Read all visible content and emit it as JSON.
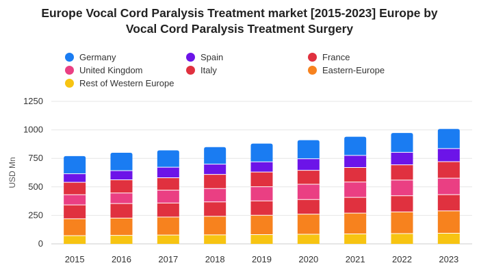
{
  "title_line1": "Europe Vocal Cord Paralysis Treatment market [2015-2023] Europe by",
  "title_line2": "Vocal Cord Paralysis Treatment Surgery",
  "chart_data": {
    "type": "bar",
    "stacked": true,
    "title": "Europe Vocal Cord Paralysis Treatment market [2015-2023] Europe by Vocal Cord Paralysis Treatment Surgery",
    "xlabel": "",
    "ylabel": "USD Mn",
    "ylim": [
      0,
      1250
    ],
    "yticks": [
      0,
      250,
      500,
      750,
      1000,
      1250
    ],
    "grid": true,
    "legend_position": "top",
    "categories": [
      "2015",
      "2016",
      "2017",
      "2018",
      "2019",
      "2020",
      "2021",
      "2022",
      "2023"
    ],
    "series": [
      {
        "name": "Rest of Western Europe",
        "color": "#f7c412",
        "values": [
          72,
          74,
          77,
          79,
          81,
          84,
          87,
          90,
          93
        ]
      },
      {
        "name": "Eastern-Europe",
        "color": "#f7821e",
        "values": [
          148,
          152,
          158,
          163,
          170,
          177,
          183,
          190,
          196
        ]
      },
      {
        "name": "Italy",
        "color": "#e0313f",
        "values": [
          122,
          128,
          123,
          126,
          126,
          128,
          138,
          142,
          143
        ]
      },
      {
        "name": "United Kingdom",
        "color": "#ea3f83",
        "values": [
          89,
          92,
          113,
          117,
          124,
          134,
          134,
          138,
          144
        ]
      },
      {
        "name": "France",
        "color": "#e0313f",
        "values": [
          109,
          116,
          109,
          124,
          129,
          122,
          128,
          133,
          145
        ]
      },
      {
        "name": "Spain",
        "color": "#6c14e8",
        "values": [
          75,
          80,
          92,
          90,
          90,
          102,
          106,
          110,
          115
        ]
      },
      {
        "name": "Germany",
        "color": "#1a7cf2",
        "values": [
          155,
          157,
          148,
          150,
          160,
          163,
          164,
          170,
          172
        ]
      }
    ]
  },
  "legend": [
    {
      "label": "Germany",
      "color": "#1a7cf2"
    },
    {
      "label": "Spain",
      "color": "#6c14e8"
    },
    {
      "label": "France",
      "color": "#e0313f"
    },
    {
      "label": "United Kingdom",
      "color": "#ea3f83"
    },
    {
      "label": "Italy",
      "color": "#e0313f"
    },
    {
      "label": "Eastern-Europe",
      "color": "#f7821e"
    },
    {
      "label": "Rest of Western Europe",
      "color": "#f7c412"
    }
  ]
}
